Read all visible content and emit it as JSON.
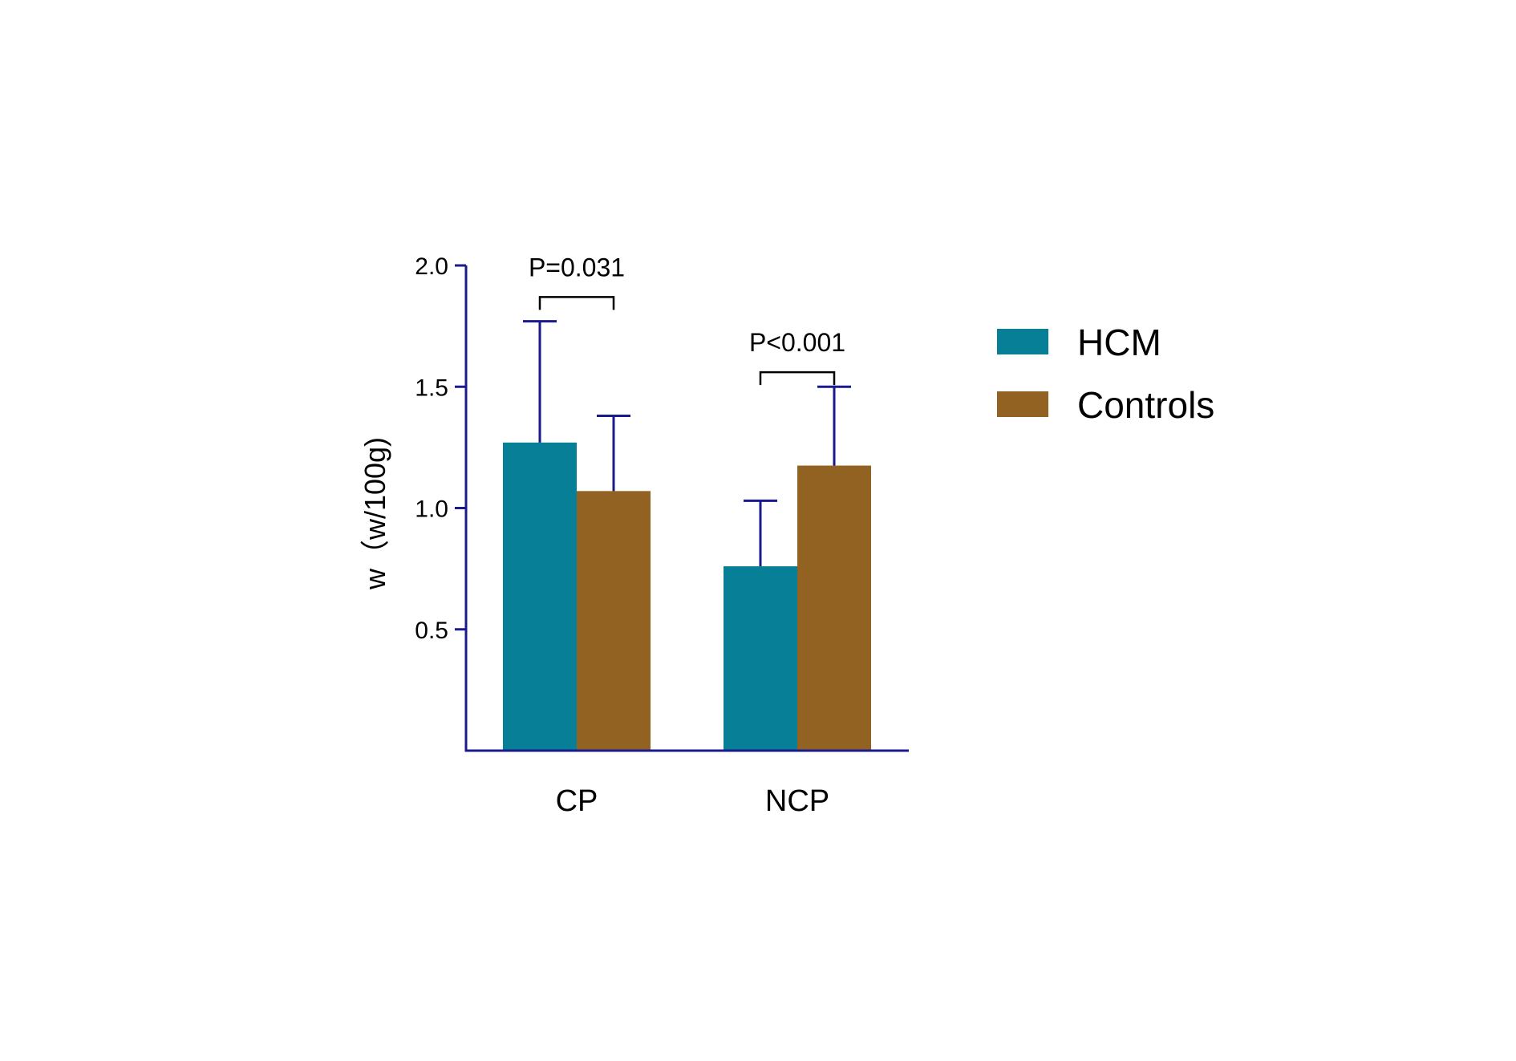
{
  "chart_data": {
    "type": "bar",
    "categories": [
      "CP",
      "NCP"
    ],
    "series": [
      {
        "name": "HCM",
        "color": "#077f96",
        "values": [
          1.27,
          0.76
        ],
        "errors": [
          0.5,
          0.27
        ]
      },
      {
        "name": "Controls",
        "color": "#926223",
        "values": [
          1.07,
          1.175
        ],
        "errors": [
          0.31,
          0.325
        ]
      }
    ],
    "ylabel": "w（w/100g)",
    "ylim": [
      0,
      2.0
    ],
    "yticks": [
      {
        "value": 0.5,
        "label": "0.5"
      },
      {
        "value": 1.0,
        "label": "1.0"
      },
      {
        "value": 1.5,
        "label": "1.5"
      },
      {
        "value": 2.0,
        "label": "2.0"
      }
    ],
    "annotations": [
      {
        "category": "CP",
        "text": "P=0.031",
        "bracket_y": 1.87
      },
      {
        "category": "NCP",
        "text": "P<0.001",
        "bracket_y": 1.56
      }
    ],
    "axis_color": "#1a1a8c",
    "legend_position": "right",
    "grid": false
  }
}
